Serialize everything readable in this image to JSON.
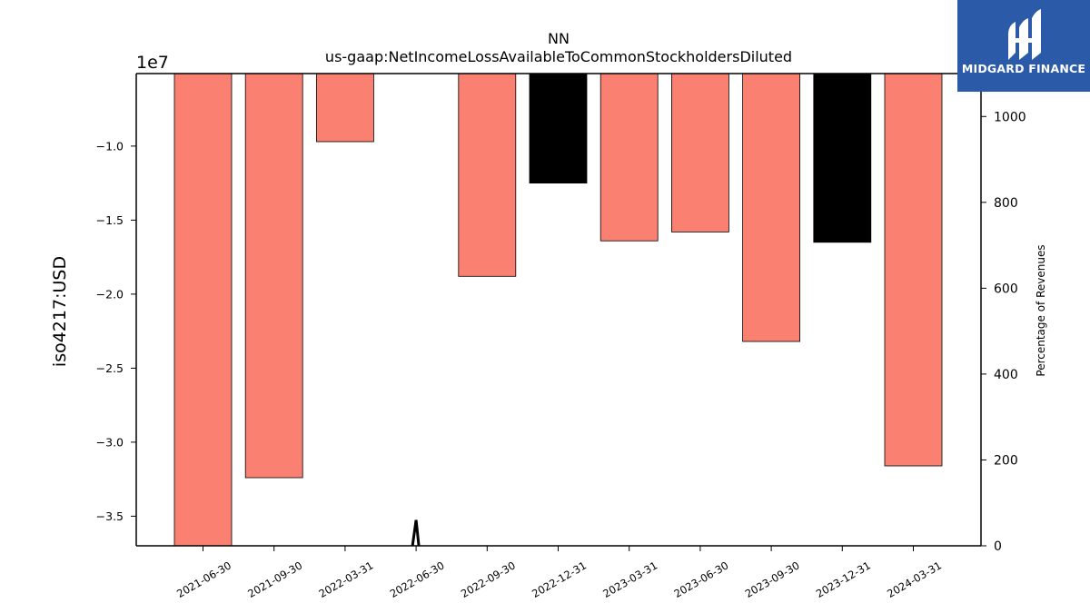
{
  "chart_data": {
    "type": "bar",
    "title": "NN",
    "subtitle": "us-gaap:NetIncomeLossAvailableToCommonStockholdersDiluted",
    "ylabel": "iso4217:USD",
    "y_offset_label": "1e7",
    "y2label": "Percentage of Revenues",
    "categories": [
      "2021-06-30",
      "2021-09-30",
      "2022-03-31",
      "2022-06-30",
      "2022-09-30",
      "2022-12-31",
      "2023-03-31",
      "2023-06-30",
      "2023-09-30",
      "2023-12-31",
      "2024-03-31"
    ],
    "values": [
      -37000000,
      -32400000,
      -9700000,
      null,
      -18800000,
      -12500000,
      -16400000,
      -15800000,
      -23200000,
      -16500000,
      -31600000
    ],
    "bar_colors": [
      "#fa8072",
      "#fa8072",
      "#fa8072",
      null,
      "#fa8072",
      "#000000",
      "#fa8072",
      "#fa8072",
      "#fa8072",
      "#000000",
      "#fa8072"
    ],
    "ylim": [
      -37000000,
      -5100000
    ],
    "yticks": [
      -35000000,
      -30000000,
      -25000000,
      -20000000,
      -15000000,
      -10000000
    ],
    "ytick_labels": [
      "−3.5",
      "−3.0",
      "−2.5",
      "−2.0",
      "−1.5",
      "−1.0"
    ],
    "y2lim": [
      0,
      1100
    ],
    "y2ticks": [
      0,
      200,
      400,
      600,
      800,
      1000
    ],
    "line_series": {
      "values": [
        null,
        null,
        null,
        60,
        null,
        null,
        null,
        null,
        null,
        null,
        null
      ],
      "color": "#000000"
    },
    "grid": false,
    "legend": "none"
  },
  "logo": {
    "text": "MIDGARD FINANCE",
    "color": "#2a5aa8"
  }
}
